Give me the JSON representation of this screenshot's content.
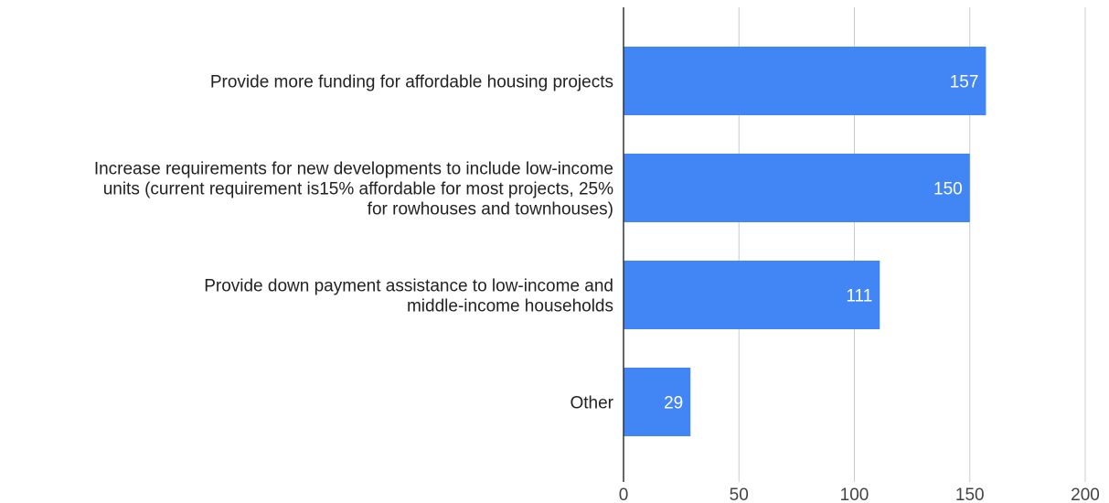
{
  "chart_data": {
    "type": "bar",
    "orientation": "horizontal",
    "title": "",
    "xlabel": "",
    "ylabel": "",
    "categories": [
      [
        "Provide more funding for affordable housing projects"
      ],
      [
        "Increase requirements for new developments to include low-income",
        "units (current requirement is15% affordable for most projects, 25%",
        "for rowhouses and townhouses)"
      ],
      [
        "Provide down payment assistance to low-income and",
        "middle-income households"
      ],
      [
        "Other"
      ]
    ],
    "values": [
      157,
      150,
      111,
      29
    ],
    "data_labels": [
      "157",
      "150",
      "111",
      "29"
    ],
    "xlim": [
      0,
      200
    ],
    "xticks": [
      0,
      50,
      100,
      150,
      200
    ],
    "xtick_labels": [
      "0",
      "50",
      "100",
      "150",
      "200"
    ],
    "grid": true,
    "legend": "none",
    "bar_color": "#4285f4"
  }
}
